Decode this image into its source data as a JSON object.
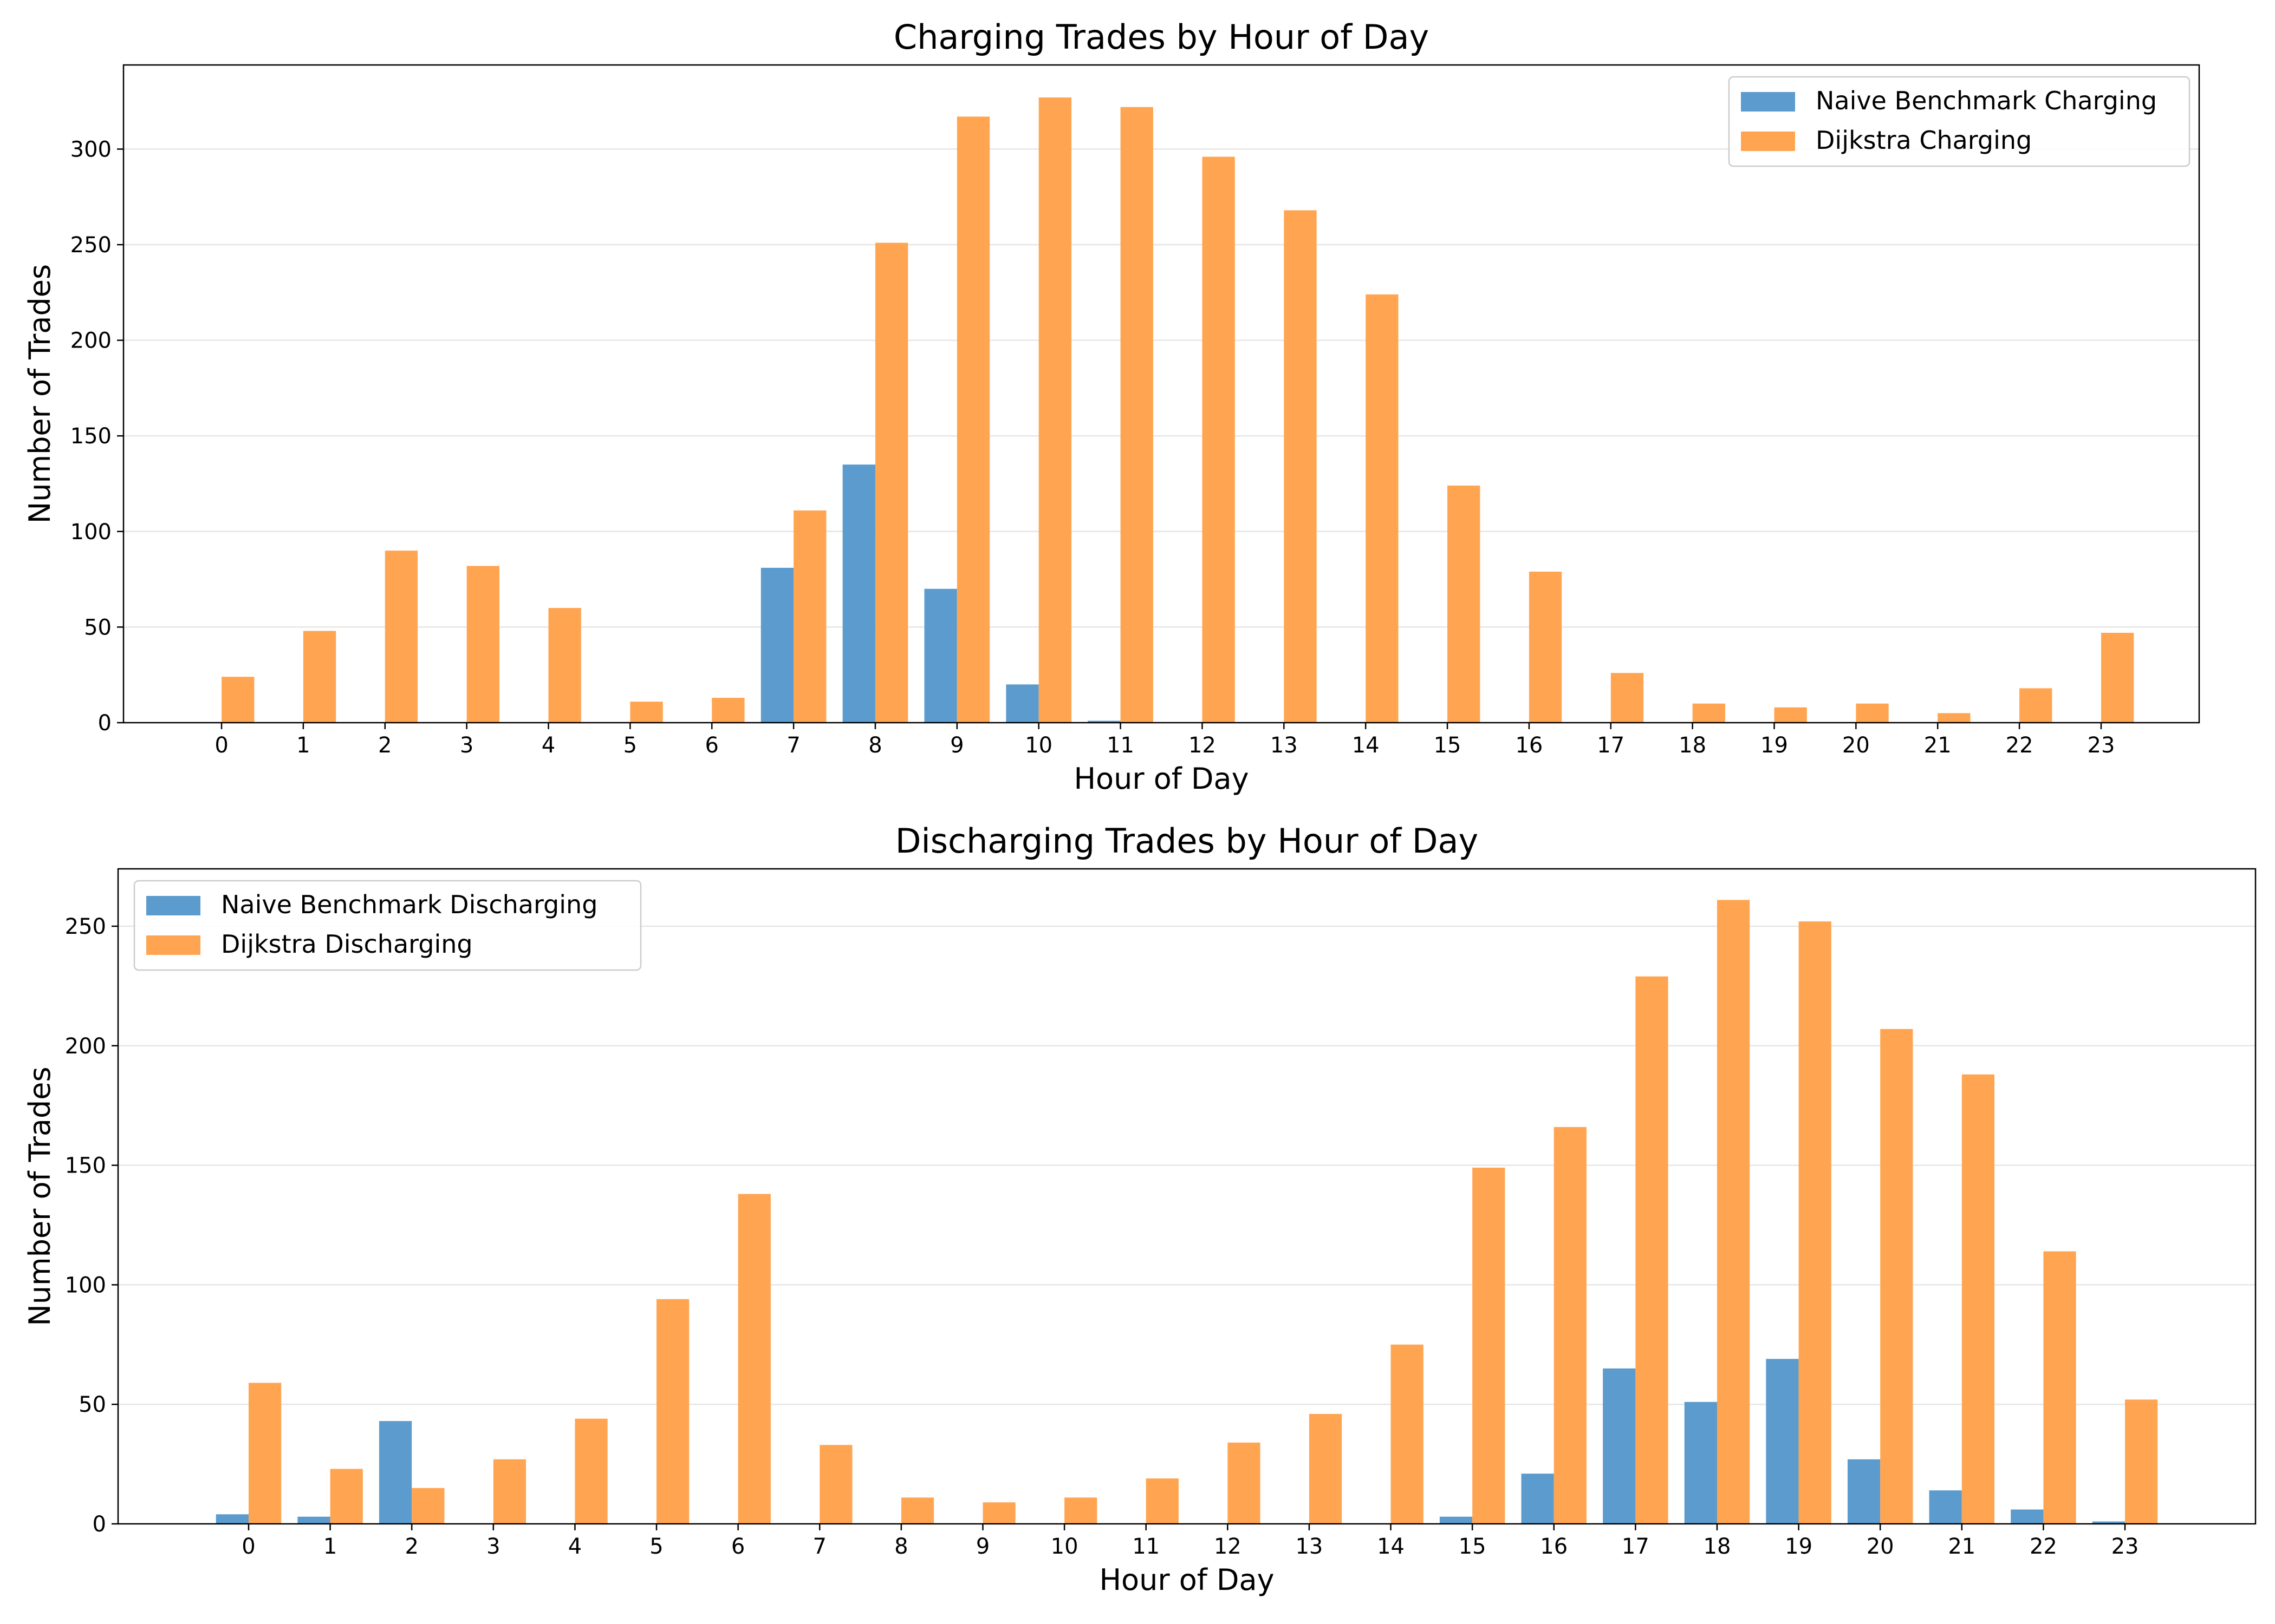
{
  "chart_data": [
    {
      "type": "bar",
      "title": "Charging Trades by Hour of Day",
      "xlabel": "Hour of Day",
      "ylabel": "Number of Trades",
      "categories": [
        "0",
        "1",
        "2",
        "3",
        "4",
        "5",
        "6",
        "7",
        "8",
        "9",
        "10",
        "11",
        "12",
        "13",
        "14",
        "15",
        "16",
        "17",
        "18",
        "19",
        "20",
        "21",
        "22",
        "23"
      ],
      "series": [
        {
          "name": "Naive Benchmark Charging",
          "color": "#5b9bcd",
          "values": [
            0,
            0,
            0,
            0,
            0,
            0,
            0,
            81,
            135,
            70,
            20,
            1,
            0,
            0,
            0,
            0,
            0,
            0,
            0,
            0,
            0,
            0,
            0,
            0
          ]
        },
        {
          "name": "Dijkstra Charging",
          "color": "#ffa552",
          "values": [
            24,
            48,
            90,
            82,
            60,
            11,
            13,
            111,
            251,
            317,
            327,
            322,
            296,
            268,
            224,
            124,
            79,
            26,
            10,
            8,
            10,
            5,
            18,
            47
          ]
        }
      ],
      "yticks": [
        0,
        50,
        100,
        150,
        200,
        250,
        300
      ],
      "ylim": [
        0,
        344
      ],
      "grid": "y",
      "legend_position": "upper right"
    },
    {
      "type": "bar",
      "title": "Discharging Trades by Hour of Day",
      "xlabel": "Hour of Day",
      "ylabel": "Number of Trades",
      "categories": [
        "0",
        "1",
        "2",
        "3",
        "4",
        "5",
        "6",
        "7",
        "8",
        "9",
        "10",
        "11",
        "12",
        "13",
        "14",
        "15",
        "16",
        "17",
        "18",
        "19",
        "20",
        "21",
        "22",
        "23"
      ],
      "series": [
        {
          "name": "Naive Benchmark Discharging",
          "color": "#5b9bcd",
          "values": [
            4,
            3,
            43,
            0,
            0,
            0,
            0,
            0,
            0,
            0,
            0,
            0,
            0,
            0,
            0,
            3,
            21,
            65,
            51,
            69,
            27,
            14,
            6,
            1
          ]
        },
        {
          "name": "Dijkstra Discharging",
          "color": "#ffa552",
          "values": [
            59,
            23,
            15,
            27,
            44,
            94,
            138,
            33,
            11,
            9,
            11,
            19,
            34,
            46,
            75,
            149,
            166,
            229,
            261,
            252,
            207,
            188,
            114,
            52
          ]
        }
      ],
      "yticks": [
        0,
        50,
        100,
        150,
        200,
        250
      ],
      "ylim": [
        0,
        274
      ],
      "grid": "y",
      "legend_position": "upper left"
    }
  ]
}
